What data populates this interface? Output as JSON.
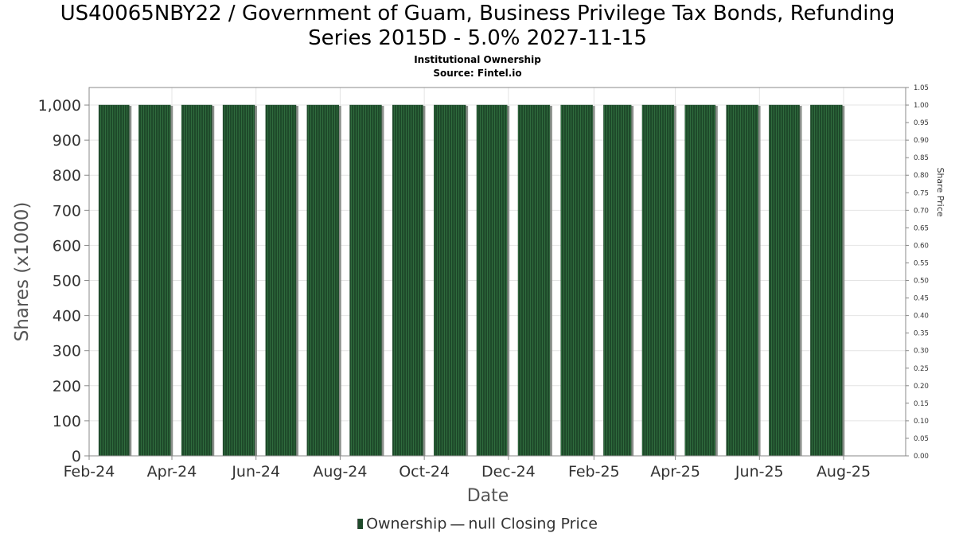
{
  "title_line1": "US40065NBY22 / Government of Guam, Business Privilege Tax Bonds, Refunding",
  "title_line2": "Series 2015D - 5.0% 2027-11-15",
  "subtitle1": "Institutional Ownership",
  "subtitle2": "Source: Fintel.io",
  "legend": {
    "ownership": "Ownership",
    "dash": "—",
    "price": "null Closing Price"
  },
  "colors": {
    "bar_fill": "#1e4a2a",
    "bar_stripe": "#2f6b3d",
    "bar_shadow": "#8a8f8a",
    "grid": "#e4e4e4",
    "plot_border": "#888888"
  },
  "chart_data": {
    "type": "bar",
    "title": "US40065NBY22 / Government of Guam, Business Privilege Tax Bonds, Refunding Series 2015D - 5.0% 2027-11-15",
    "xlabel": "Date",
    "ylabel": "Shares (x1000)",
    "y2label": "Share Price",
    "ylim": [
      0,
      1050
    ],
    "y2lim": [
      0,
      1.05
    ],
    "x_range": [
      "2024-02-01",
      "2025-09-15"
    ],
    "x_ticks": [
      {
        "label": "Feb-24",
        "date": "2024-02-01"
      },
      {
        "label": "Apr-24",
        "date": "2024-04-01"
      },
      {
        "label": "Jun-24",
        "date": "2024-06-01"
      },
      {
        "label": "Aug-24",
        "date": "2024-08-01"
      },
      {
        "label": "Oct-24",
        "date": "2024-10-01"
      },
      {
        "label": "Dec-24",
        "date": "2024-12-01"
      },
      {
        "label": "Feb-25",
        "date": "2025-02-01"
      },
      {
        "label": "Apr-25",
        "date": "2025-04-01"
      },
      {
        "label": "Jun-25",
        "date": "2025-06-01"
      },
      {
        "label": "Aug-25",
        "date": "2025-08-01"
      }
    ],
    "y_ticks": [
      "0",
      "100",
      "200",
      "300",
      "400",
      "500",
      "600",
      "700",
      "800",
      "900",
      "1,000"
    ],
    "y2_ticks": [
      "0.00",
      "0.05",
      "0.10",
      "0.15",
      "0.20",
      "0.25",
      "0.30",
      "0.35",
      "0.40",
      "0.45",
      "0.50",
      "0.55",
      "0.60",
      "0.65",
      "0.70",
      "0.75",
      "0.80",
      "0.85",
      "0.90",
      "0.95",
      "1.00",
      "1.05"
    ],
    "series": [
      {
        "name": "Ownership",
        "bars": [
          {
            "start": "2024-02-08",
            "end": "2024-03-01",
            "value": 1000
          },
          {
            "start": "2024-03-08",
            "end": "2024-03-31",
            "value": 1000
          },
          {
            "start": "2024-04-08",
            "end": "2024-04-30",
            "value": 1000
          },
          {
            "start": "2024-05-08",
            "end": "2024-05-31",
            "value": 1000
          },
          {
            "start": "2024-06-08",
            "end": "2024-06-30",
            "value": 1000
          },
          {
            "start": "2024-07-08",
            "end": "2024-07-31",
            "value": 1000
          },
          {
            "start": "2024-08-08",
            "end": "2024-08-31",
            "value": 1000
          },
          {
            "start": "2024-09-08",
            "end": "2024-09-30",
            "value": 1000
          },
          {
            "start": "2024-10-08",
            "end": "2024-10-31",
            "value": 1000
          },
          {
            "start": "2024-11-08",
            "end": "2024-11-30",
            "value": 1000
          },
          {
            "start": "2024-12-08",
            "end": "2024-12-31",
            "value": 1000
          },
          {
            "start": "2025-01-08",
            "end": "2025-01-31",
            "value": 1000
          },
          {
            "start": "2025-02-08",
            "end": "2025-02-28",
            "value": 1000
          },
          {
            "start": "2025-03-08",
            "end": "2025-03-31",
            "value": 1000
          },
          {
            "start": "2025-04-08",
            "end": "2025-04-30",
            "value": 1000
          },
          {
            "start": "2025-05-08",
            "end": "2025-05-31",
            "value": 1000
          },
          {
            "start": "2025-06-08",
            "end": "2025-06-30",
            "value": 1000
          },
          {
            "start": "2025-07-08",
            "end": "2025-07-31",
            "value": 1000
          }
        ]
      }
    ],
    "grid": true,
    "legend_position": "bottom-center"
  }
}
